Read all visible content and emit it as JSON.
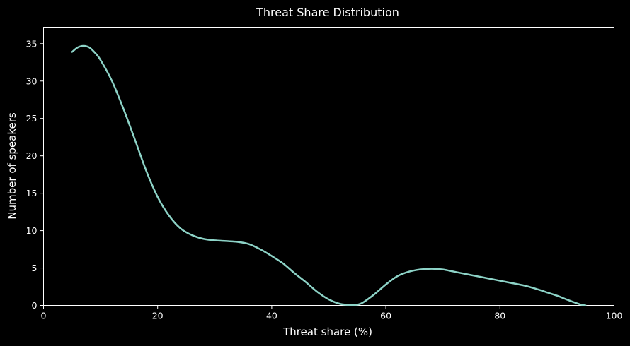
{
  "chart_data": {
    "type": "line",
    "title": "Threat Share Distribution",
    "xlabel": "Threat share (%)",
    "ylabel": "Number of speakers",
    "xlim": [
      0,
      100
    ],
    "ylim": [
      0,
      37.2
    ],
    "xticks": [
      0,
      20,
      40,
      60,
      80,
      100
    ],
    "yticks": [
      0,
      5,
      10,
      15,
      20,
      25,
      30,
      35
    ],
    "grid": false,
    "colors": {
      "background": "#000000",
      "line": "#8dd3c7",
      "axes": "#ffffff"
    },
    "series": [
      {
        "color": "#8dd3c7",
        "x": [
          5,
          6,
          7,
          8,
          9,
          10,
          12,
          14,
          16,
          18,
          20,
          22,
          24,
          26,
          28,
          30,
          32,
          34,
          36,
          38,
          40,
          42,
          44,
          46,
          48,
          50,
          52,
          54,
          55,
          56,
          58,
          60,
          62,
          64,
          66,
          68,
          70,
          72,
          74,
          76,
          78,
          80,
          82,
          84,
          86,
          88,
          90,
          92,
          94,
          95
        ],
        "y": [
          33.9,
          34.5,
          34.7,
          34.5,
          33.8,
          32.8,
          30.0,
          26.3,
          22.2,
          18.0,
          14.5,
          12.0,
          10.3,
          9.4,
          8.9,
          8.7,
          8.6,
          8.5,
          8.2,
          7.5,
          6.6,
          5.6,
          4.3,
          3.1,
          1.8,
          0.8,
          0.2,
          0.05,
          0.1,
          0.4,
          1.5,
          2.8,
          3.9,
          4.5,
          4.8,
          4.9,
          4.8,
          4.5,
          4.2,
          3.9,
          3.6,
          3.3,
          3.0,
          2.7,
          2.3,
          1.8,
          1.3,
          0.7,
          0.15,
          0.0
        ]
      }
    ]
  }
}
